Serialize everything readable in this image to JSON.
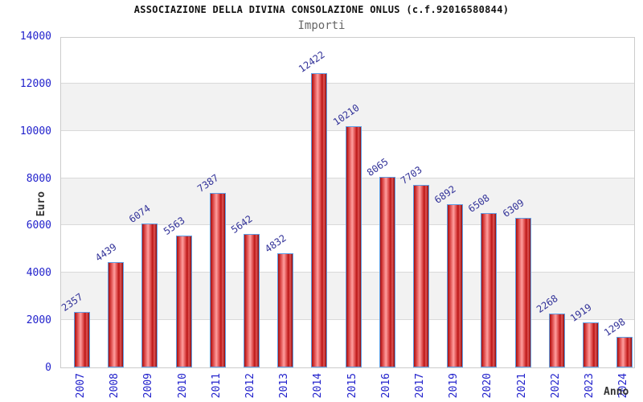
{
  "chart_data": {
    "type": "bar",
    "title": "ASSOCIAZIONE DELLA DIVINA CONSOLAZIONE ONLUS (c.f.92016580844)",
    "subtitle": "Importi",
    "xlabel": "Anno",
    "ylabel": "Euro",
    "categories": [
      "2007",
      "2008",
      "2009",
      "2010",
      "2011",
      "2012",
      "2013",
      "2014",
      "2015",
      "2016",
      "2017",
      "2019",
      "2020",
      "2021",
      "2022",
      "2023",
      "2024"
    ],
    "values": [
      2357,
      4439,
      6074,
      5563,
      7387,
      5642,
      4832,
      12422,
      10210,
      8065,
      7703,
      6892,
      6508,
      6309,
      2268,
      1919,
      1298
    ],
    "ylim": [
      0,
      14000
    ],
    "ytick_step": 2000,
    "yticks": [
      0,
      2000,
      4000,
      6000,
      8000,
      10000,
      12000,
      14000
    ],
    "grid": true,
    "legend": "none",
    "colors": {
      "title": "#111111",
      "subtitle": "#666666",
      "axis_title": "#333333",
      "tick_label": "#2222cc",
      "value_label": "#333399",
      "band": "#f2f2f2",
      "gridline": "#d9d9d9",
      "plot_border": "#cccccc",
      "bar_border": "#5f9ee4",
      "bar_dark": "#a50f0f",
      "bar_mid": "#d84040",
      "bar_light": "#ff9e9e"
    }
  }
}
